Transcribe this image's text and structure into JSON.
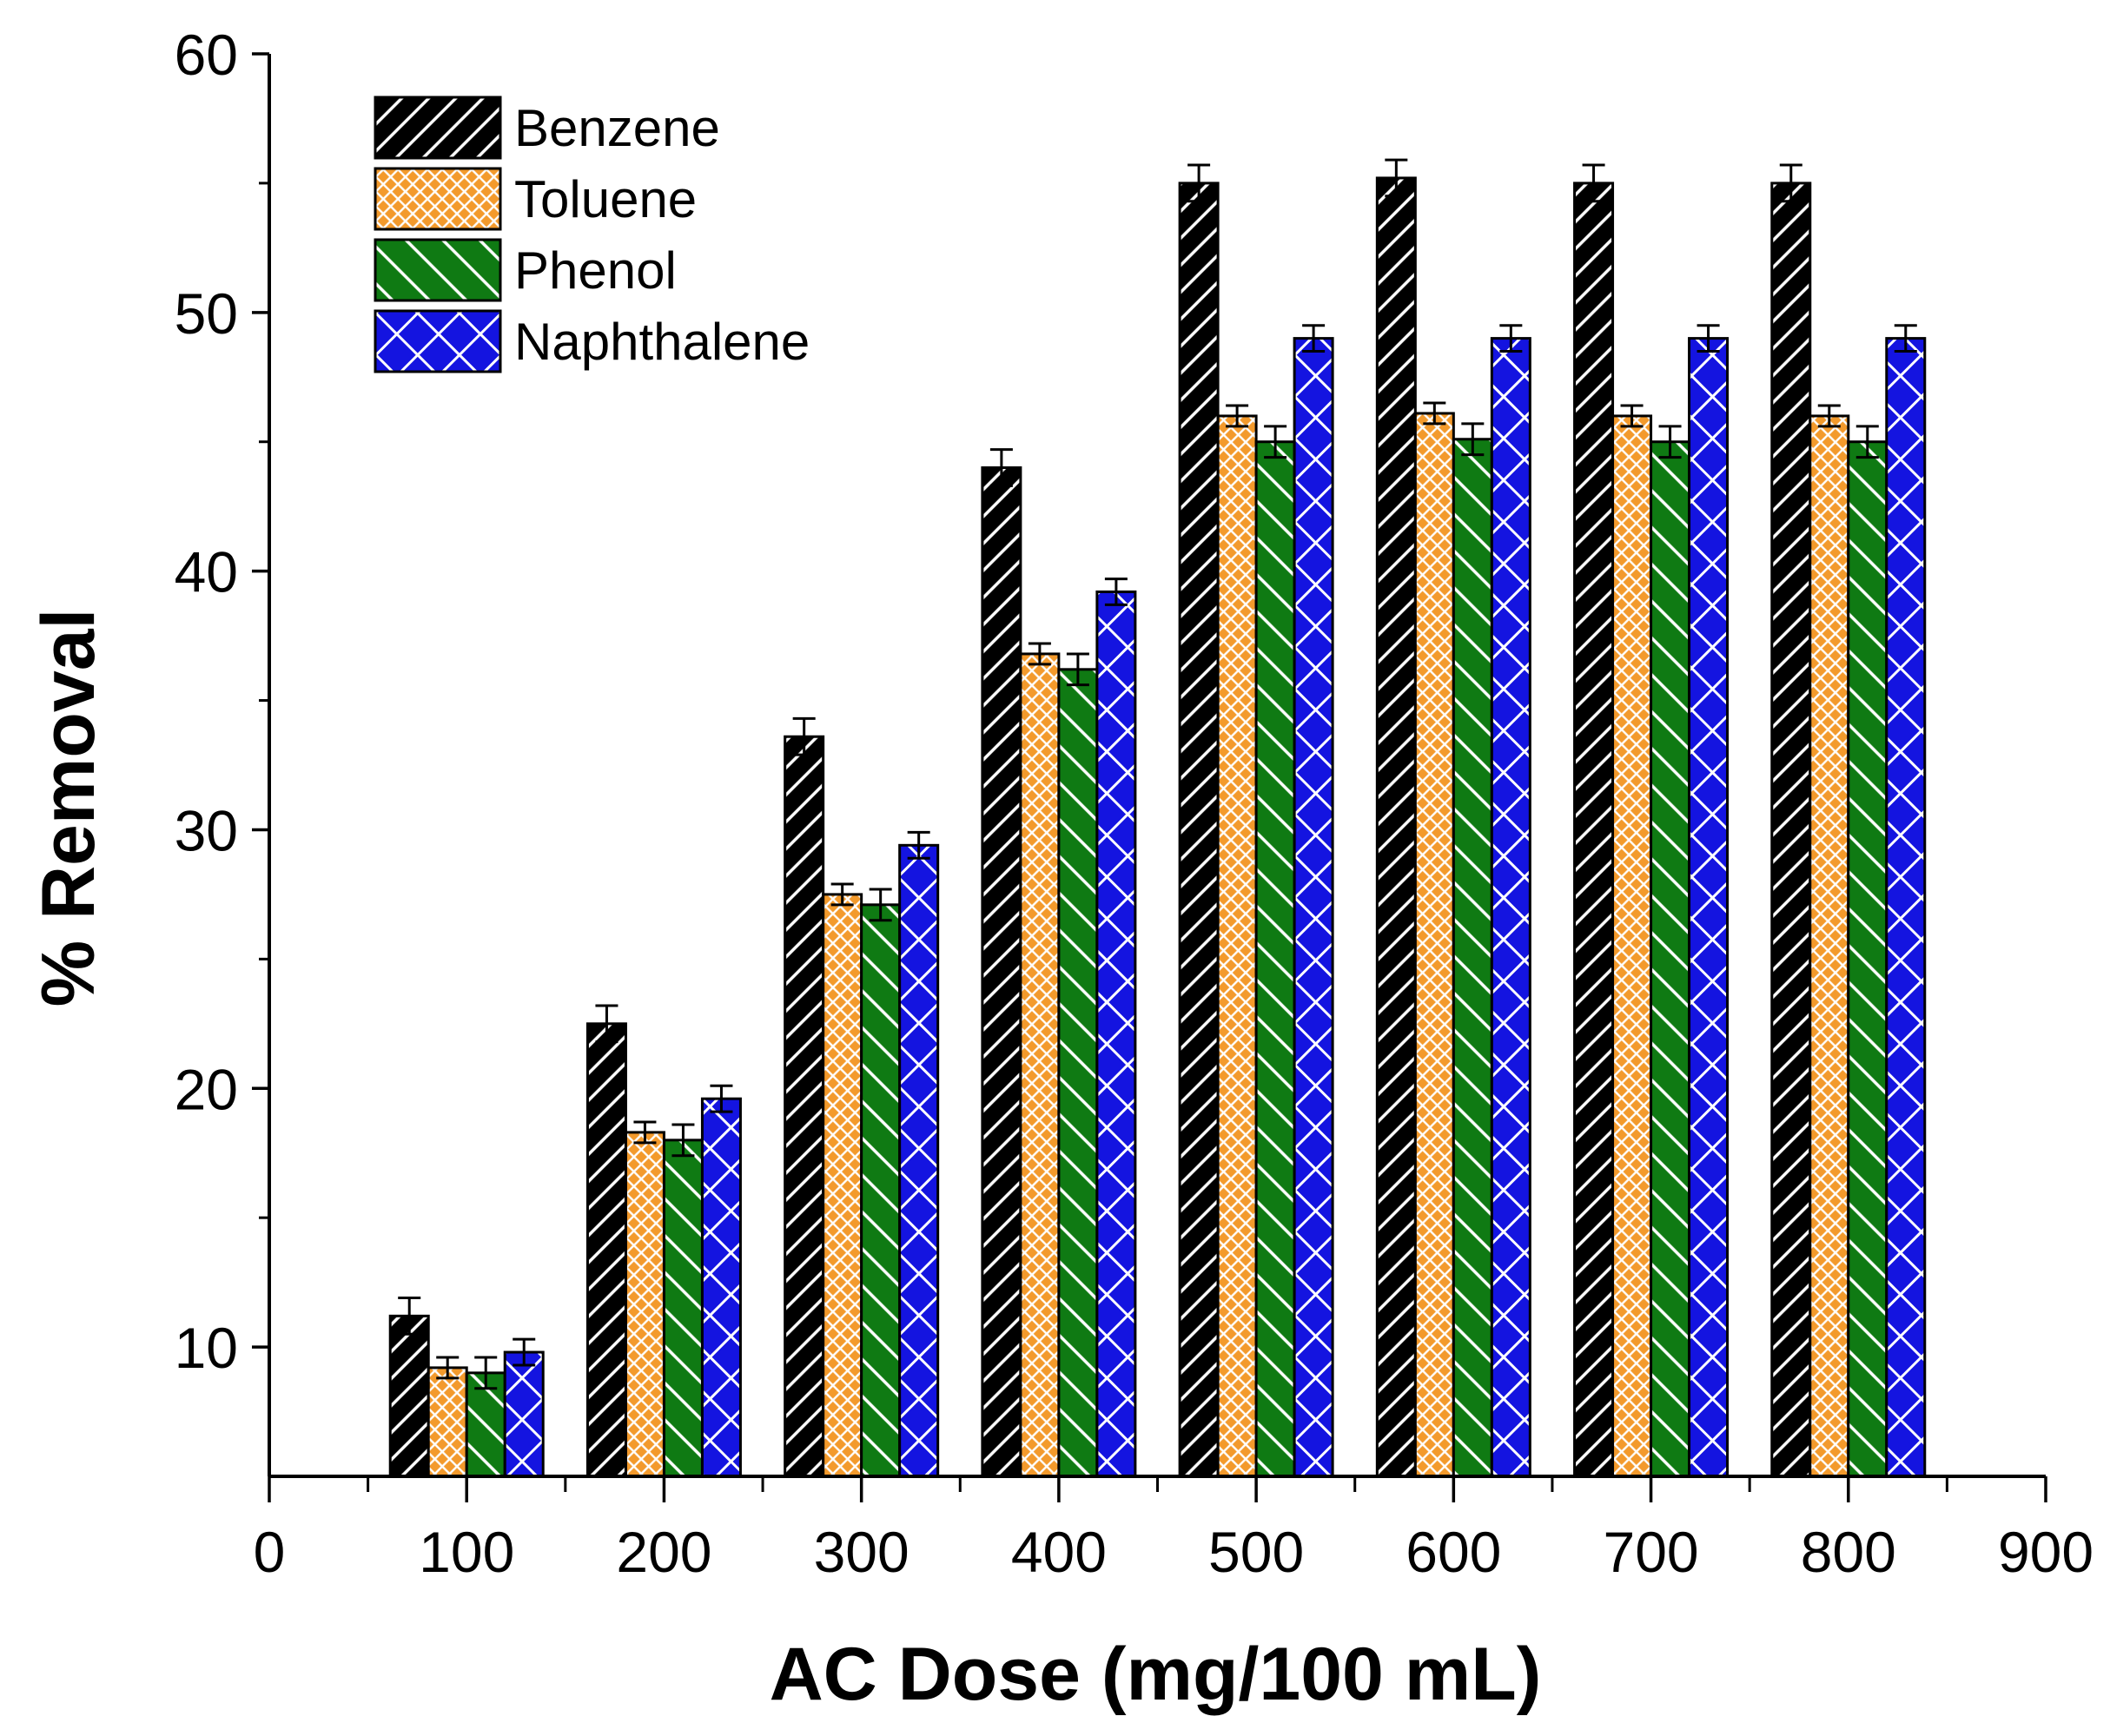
{
  "chart_data": {
    "type": "bar",
    "title": "",
    "xlabel": "AC Dose (mg/100 mL)",
    "ylabel": "% Removal",
    "categories": [
      100,
      200,
      300,
      400,
      500,
      600,
      700,
      800
    ],
    "xlim": [
      0,
      900
    ],
    "ylim": [
      5,
      60
    ],
    "xticks": [
      0,
      100,
      200,
      300,
      400,
      500,
      600,
      700,
      800,
      900
    ],
    "yticks": [
      10,
      20,
      30,
      40,
      50,
      60
    ],
    "grid": false,
    "legend_position": "top-left",
    "series": [
      {
        "name": "Benzene",
        "pattern": "diagonal-lines",
        "fill": "#000000",
        "stripe": "#ffffff",
        "values": [
          11.2,
          22.5,
          33.6,
          44.0,
          55.0,
          55.2,
          55.0,
          55.0
        ],
        "errors": [
          0.7,
          0.7,
          0.7,
          0.7,
          0.7,
          0.7,
          0.7,
          0.7
        ]
      },
      {
        "name": "Toluene",
        "pattern": "crosshatch",
        "fill": "#f39a2c",
        "stripe": "#ffffff",
        "values": [
          9.2,
          18.3,
          27.5,
          36.8,
          46.0,
          46.1,
          46.0,
          46.0
        ],
        "errors": [
          0.4,
          0.4,
          0.4,
          0.4,
          0.4,
          0.4,
          0.4,
          0.4
        ]
      },
      {
        "name": "Phenol",
        "pattern": "reverse-diagonal",
        "fill": "#0f7a13",
        "stripe": "#ffffff",
        "values": [
          9.0,
          18.0,
          27.1,
          36.2,
          45.0,
          45.1,
          45.0,
          45.0
        ],
        "errors": [
          0.6,
          0.6,
          0.6,
          0.6,
          0.6,
          0.6,
          0.6,
          0.6
        ]
      },
      {
        "name": "Naphthalene",
        "pattern": "diamond-lattice",
        "fill": "#1414e0",
        "stripe": "#ffffff",
        "values": [
          9.8,
          19.6,
          29.4,
          39.2,
          49.0,
          49.0,
          49.0,
          49.0
        ],
        "errors": [
          0.5,
          0.5,
          0.5,
          0.5,
          0.5,
          0.5,
          0.5,
          0.5
        ]
      }
    ]
  }
}
